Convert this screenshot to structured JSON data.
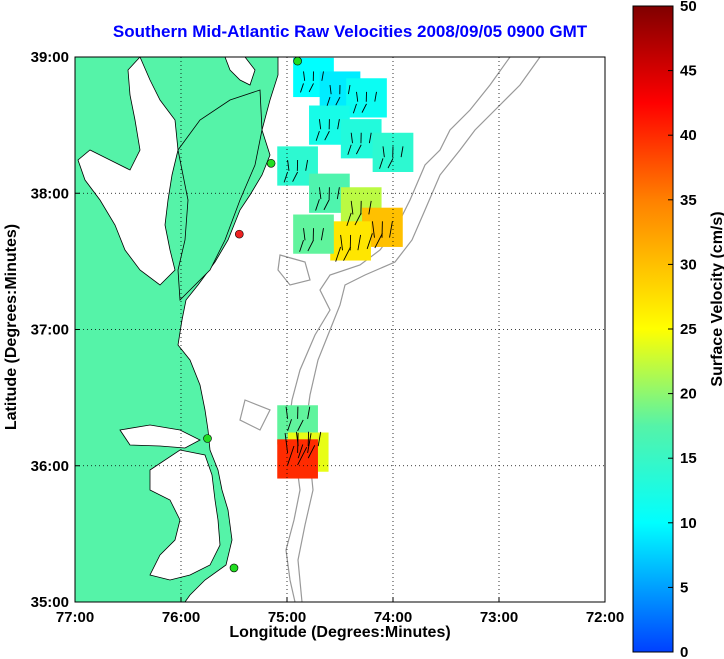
{
  "title": "Southern Mid-Atlantic Raw Velocities 2008/09/05 0900 GMT",
  "xlabel": "Longitude (Degrees:Minutes)",
  "ylabel": "Latitude (Degrees:Minutes)",
  "colorbar_label": "Surface Velocity (cm/s)",
  "x_ticks": [
    "77:00",
    "76:00",
    "75:00",
    "74:00",
    "73:00",
    "72:00"
  ],
  "y_ticks": [
    "39:00",
    "38:00",
    "37:00",
    "36:00",
    "35:00"
  ],
  "colorbar_ticks": [
    "50",
    "45",
    "40",
    "35",
    "30",
    "25",
    "20",
    "15",
    "10",
    "5",
    "0"
  ],
  "colors": {
    "title": "#0000ff",
    "land": "#55f3a8",
    "station": "#22dd22",
    "station_alert": "#ee2222"
  },
  "chart_data": {
    "type": "heatmap",
    "title": "Southern Mid-Atlantic Raw Velocities 2008/09/05 0900 GMT",
    "xlabel": "Longitude (Degrees:Minutes)",
    "ylabel": "Latitude (Degrees:Minutes)",
    "xlim": [
      -77.0,
      -72.0
    ],
    "ylim": [
      35.0,
      39.0
    ],
    "grid": true,
    "colorbar": {
      "label": "Surface Velocity (cm/s)",
      "range": [
        0,
        50
      ],
      "colormap": "jet"
    },
    "stations": [
      {
        "lon": -74.9,
        "lat": 38.97,
        "status": "ok"
      },
      {
        "lon": -75.15,
        "lat": 38.22,
        "status": "ok"
      },
      {
        "lon": -75.45,
        "lat": 37.7,
        "status": "alert"
      },
      {
        "lon": -75.75,
        "lat": 36.2,
        "status": "ok"
      },
      {
        "lon": -75.5,
        "lat": 35.25,
        "status": "ok"
      }
    ],
    "velocity_field": [
      {
        "lon": -74.75,
        "lat": 38.85,
        "speed": 10
      },
      {
        "lon": -74.5,
        "lat": 38.75,
        "speed": 9
      },
      {
        "lon": -74.25,
        "lat": 38.7,
        "speed": 11
      },
      {
        "lon": -74.6,
        "lat": 38.5,
        "speed": 12
      },
      {
        "lon": -74.3,
        "lat": 38.4,
        "speed": 13
      },
      {
        "lon": -74.0,
        "lat": 38.3,
        "speed": 14
      },
      {
        "lon": -74.9,
        "lat": 38.2,
        "speed": 14
      },
      {
        "lon": -74.6,
        "lat": 38.0,
        "speed": 17
      },
      {
        "lon": -74.3,
        "lat": 37.9,
        "speed": 22
      },
      {
        "lon": -74.1,
        "lat": 37.75,
        "speed": 30
      },
      {
        "lon": -74.4,
        "lat": 37.65,
        "speed": 27
      },
      {
        "lon": -74.75,
        "lat": 37.7,
        "speed": 18
      },
      {
        "lon": -74.9,
        "lat": 36.3,
        "speed": 18
      },
      {
        "lon": -74.8,
        "lat": 36.1,
        "speed": 24
      },
      {
        "lon": -74.9,
        "lat": 36.05,
        "speed": 40
      }
    ]
  }
}
